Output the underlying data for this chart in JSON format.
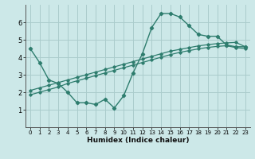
{
  "title": "",
  "xlabel": "Humidex (Indice chaleur)",
  "bg_color": "#cce8e8",
  "line_color": "#2e7d6e",
  "grid_color": "#aacccc",
  "xlim": [
    -0.5,
    23.5
  ],
  "ylim": [
    0,
    7
  ],
  "xticks": [
    0,
    1,
    2,
    3,
    4,
    5,
    6,
    7,
    8,
    9,
    10,
    11,
    12,
    13,
    14,
    15,
    16,
    17,
    18,
    19,
    20,
    21,
    22,
    23
  ],
  "yticks": [
    1,
    2,
    3,
    4,
    5,
    6
  ],
  "curve1_x": [
    0,
    1,
    2,
    3,
    4,
    5,
    6,
    7,
    8,
    9,
    10,
    11,
    12,
    13,
    14,
    15,
    16,
    17,
    18,
    19,
    20,
    21,
    22,
    23
  ],
  "curve1_y": [
    4.5,
    3.7,
    2.7,
    2.5,
    2.0,
    1.4,
    1.4,
    1.3,
    1.6,
    1.1,
    1.8,
    3.1,
    4.2,
    5.7,
    6.5,
    6.5,
    6.3,
    5.8,
    5.3,
    5.2,
    5.2,
    4.7,
    4.6,
    4.6
  ],
  "curve2_x": [
    0,
    1,
    2,
    3,
    4,
    5,
    6,
    7,
    8,
    9,
    10,
    11,
    12,
    13,
    14,
    15,
    16,
    17,
    18,
    19,
    20,
    21,
    22,
    23
  ],
  "curve2_y": [
    2.1,
    2.25,
    2.4,
    2.55,
    2.7,
    2.85,
    3.0,
    3.15,
    3.3,
    3.45,
    3.6,
    3.75,
    3.9,
    4.05,
    4.2,
    4.35,
    4.45,
    4.55,
    4.65,
    4.72,
    4.78,
    4.82,
    4.85,
    4.6
  ],
  "curve3_x": [
    0,
    1,
    2,
    3,
    4,
    5,
    6,
    7,
    8,
    9,
    10,
    11,
    12,
    13,
    14,
    15,
    16,
    17,
    18,
    19,
    20,
    21,
    22,
    23
  ],
  "curve3_y": [
    1.85,
    2.0,
    2.15,
    2.3,
    2.5,
    2.65,
    2.8,
    2.95,
    3.1,
    3.25,
    3.4,
    3.55,
    3.7,
    3.85,
    4.0,
    4.15,
    4.28,
    4.38,
    4.48,
    4.56,
    4.62,
    4.66,
    4.55,
    4.5
  ]
}
